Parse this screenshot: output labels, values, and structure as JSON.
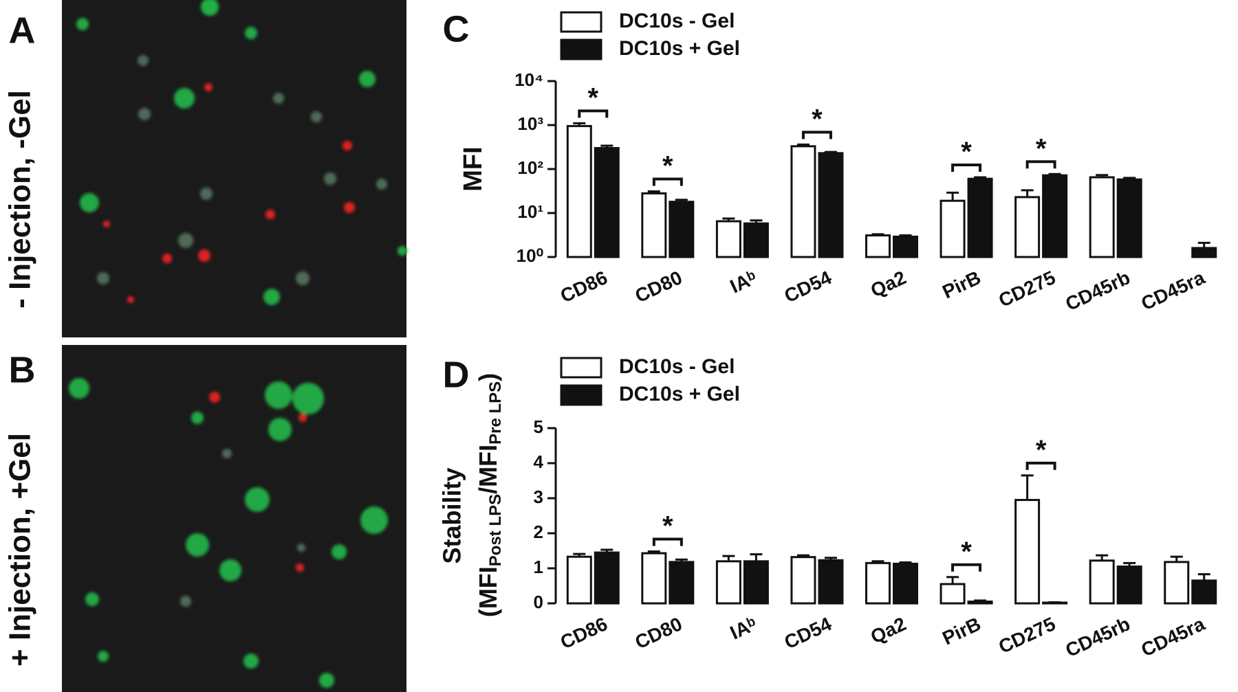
{
  "panels": [
    {
      "label": "A",
      "caption": "- Injection, -Gel"
    },
    {
      "label": "B",
      "caption": "+ Injection, +Gel"
    }
  ],
  "chart_data": [
    {
      "type": "bar",
      "panel_label": "C",
      "ylabel": "MFI",
      "log_scale": true,
      "ylim": [
        1,
        10000
      ],
      "yticks": [
        {
          "value": 1,
          "label": "10⁰"
        },
        {
          "value": 10,
          "label": "10¹"
        },
        {
          "value": 100,
          "label": "10²"
        },
        {
          "value": 1000,
          "label": "10³"
        },
        {
          "value": 10000,
          "label": "10⁴"
        }
      ],
      "categories": [
        "CD86",
        "CD80",
        "IAᵇ",
        "CD54",
        "Qa2",
        "PirB",
        "CD275",
        "CD45rb",
        "CD45ra"
      ],
      "legend": "top-left",
      "series": [
        {
          "name": "DC10s - Gel",
          "color": "#ffffff",
          "values": [
            950,
            28,
            6.5,
            330,
            3.1,
            19,
            23,
            65,
            null
          ],
          "errors": [
            150,
            3,
            1,
            30,
            0.2,
            10,
            10,
            8,
            null
          ]
        },
        {
          "name": "DC10s + Gel",
          "color": "#111111",
          "values": [
            300,
            18,
            5.8,
            230,
            2.9,
            60,
            72,
            58,
            1.6
          ],
          "errors": [
            40,
            2,
            1,
            15,
            0.2,
            5,
            5,
            5,
            0.5
          ]
        }
      ],
      "significance": [
        {
          "category": "CD86",
          "label": "*"
        },
        {
          "category": "CD80",
          "label": "*"
        },
        {
          "category": "CD54",
          "label": "*"
        },
        {
          "category": "PirB",
          "label": "*"
        },
        {
          "category": "CD275",
          "label": "*"
        }
      ]
    },
    {
      "type": "bar",
      "panel_label": "D",
      "ylabel": "Stability",
      "ylabel_parts": [
        "(MFI",
        "Post LPS",
        "/MFI",
        "Pre LPS",
        ")"
      ],
      "log_scale": false,
      "ylim": [
        0,
        5
      ],
      "yticks": [
        0,
        1,
        2,
        3,
        4,
        5
      ],
      "categories": [
        "CD86",
        "CD80",
        "IAᵇ",
        "CD54",
        "Qa2",
        "PirB",
        "CD275",
        "CD45rb",
        "CD45ra"
      ],
      "legend": "top-left",
      "series": [
        {
          "name": "DC10s - Gel",
          "color": "#ffffff",
          "values": [
            1.33,
            1.43,
            1.2,
            1.32,
            1.15,
            0.55,
            2.95,
            1.22,
            1.18
          ],
          "errors": [
            0.08,
            0.05,
            0.15,
            0.05,
            0.05,
            0.2,
            0.7,
            0.15,
            0.15
          ]
        },
        {
          "name": "DC10s + Gel",
          "color": "#111111",
          "values": [
            1.45,
            1.18,
            1.2,
            1.23,
            1.13,
            0.05,
            0.02,
            1.05,
            0.65
          ],
          "errors": [
            0.08,
            0.07,
            0.2,
            0.07,
            0.04,
            0.03,
            0.01,
            0.1,
            0.18
          ]
        }
      ],
      "significance": [
        {
          "category": "CD80",
          "label": "*"
        },
        {
          "category": "PirB",
          "label": "*"
        },
        {
          "category": "CD275",
          "label": "*"
        }
      ]
    }
  ]
}
